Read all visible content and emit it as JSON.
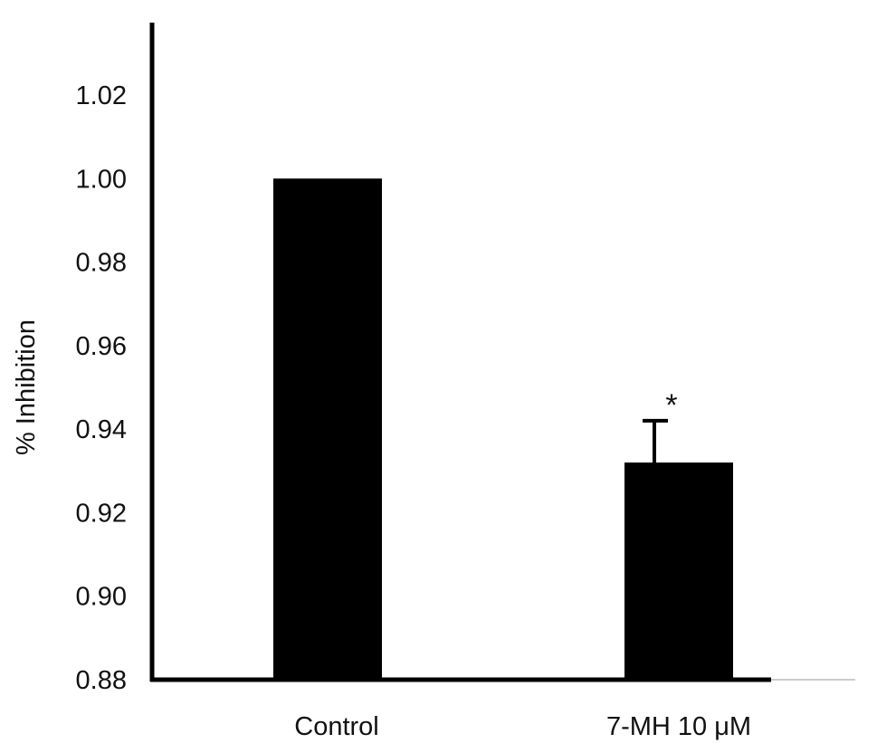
{
  "chart_data": {
    "type": "bar",
    "categories": [
      "Control",
      "7-MH 10 μM"
    ],
    "values": [
      1.0,
      0.932
    ],
    "error_bars": [
      null,
      0.01
    ],
    "annotations": [
      null,
      "*"
    ],
    "xlabel": "",
    "ylabel": "% Inhibition",
    "ylim": [
      0.88,
      1.04
    ],
    "yticks": [
      "0.88",
      "0.90",
      "0.92",
      "0.94",
      "0.96",
      "0.98",
      "1.00",
      "1.02"
    ],
    "grid": false,
    "legend": "none",
    "bar_color": "#000000"
  }
}
